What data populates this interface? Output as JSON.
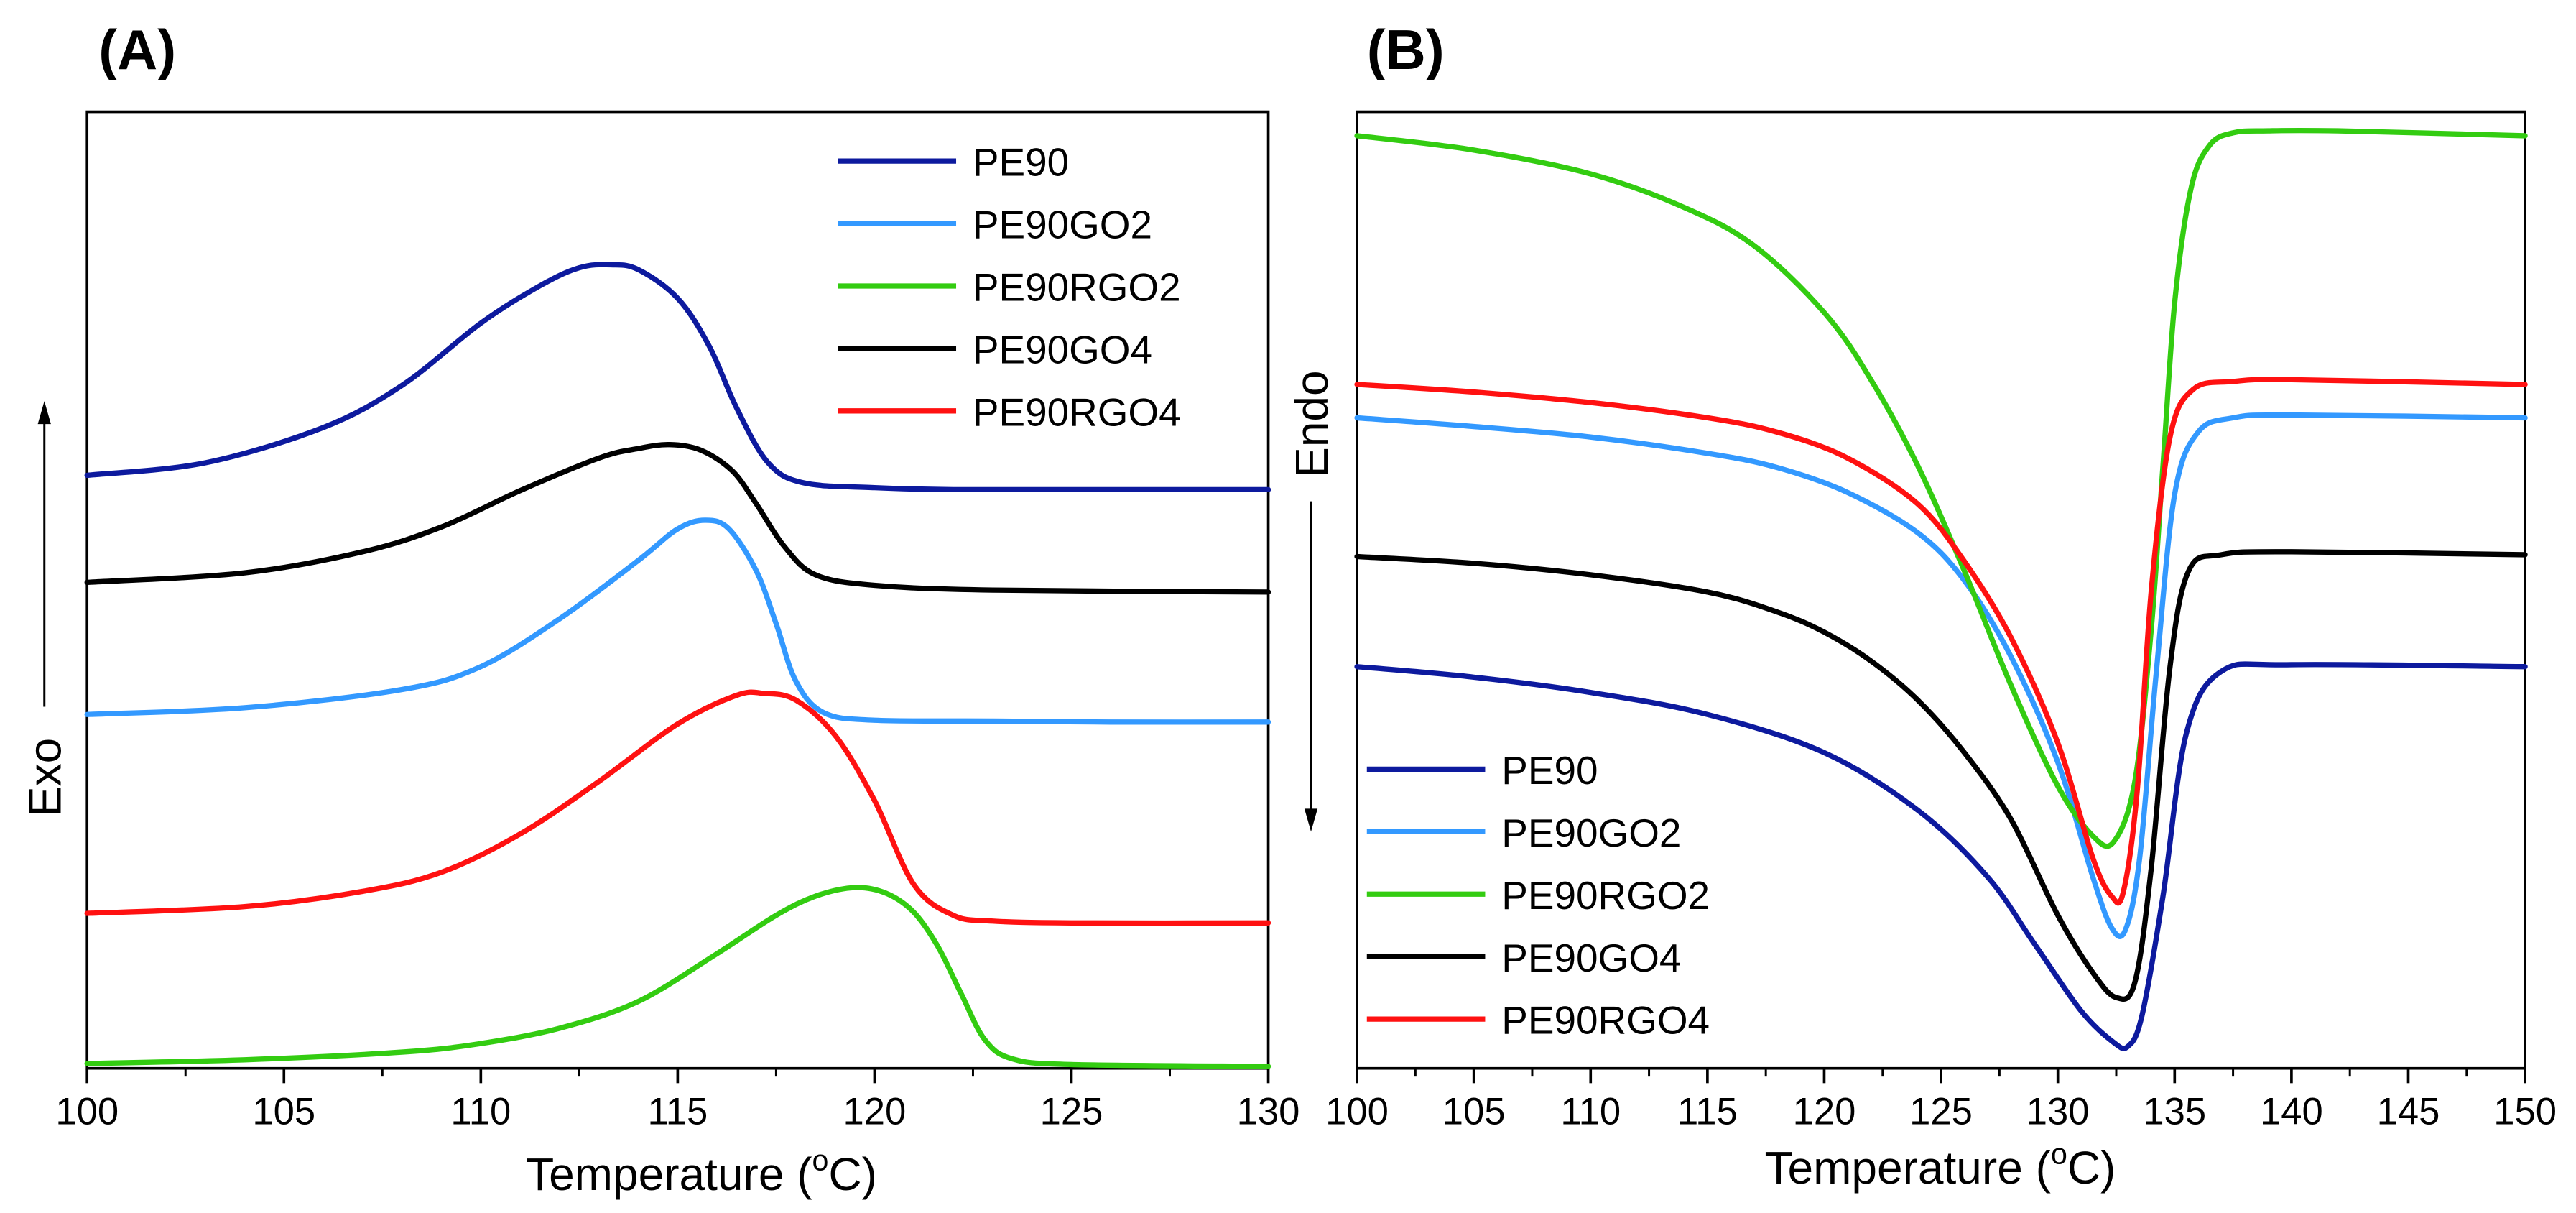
{
  "chart_data": [
    {
      "type": "line",
      "panel_label": "(A)",
      "xlabel_prefix": "Temperature (",
      "xlabel_sup": "o",
      "xlabel_suffix": "C)",
      "xlim": [
        100,
        130
      ],
      "xticks": [
        "100",
        "105",
        "110",
        "115",
        "120",
        "125",
        "130"
      ],
      "ylabel_text": "Exo",
      "yticks": [],
      "legend_position": "top-right",
      "series": [
        {
          "name": "PE90",
          "color": "#0d1a9e",
          "x": [
            100,
            103,
            106,
            108,
            110,
            111.5,
            112.5,
            113.3,
            114,
            115,
            115.8,
            116.5,
            117.3,
            118.2,
            120,
            122,
            125,
            130
          ],
          "y": [
            0.62,
            0.633,
            0.67,
            0.714,
            0.779,
            0.818,
            0.837,
            0.84,
            0.835,
            0.805,
            0.755,
            0.69,
            0.633,
            0.612,
            0.607,
            0.605,
            0.605,
            0.605
          ]
        },
        {
          "name": "PE90GO2",
          "color": "#3399ff",
          "x": [
            100,
            104,
            108,
            110,
            112,
            114,
            115,
            115.7,
            116.3,
            117,
            117.5,
            118,
            118.7,
            120,
            123,
            126,
            130
          ],
          "y": [
            0.37,
            0.377,
            0.396,
            0.42,
            0.47,
            0.531,
            0.564,
            0.573,
            0.564,
            0.52,
            0.465,
            0.405,
            0.372,
            0.364,
            0.363,
            0.362,
            0.362
          ]
        },
        {
          "name": "PE90RGO2",
          "color": "#33cc11",
          "x": [
            100,
            104,
            108,
            110,
            112,
            114,
            116,
            117.5,
            118.5,
            119.5,
            120.3,
            121,
            121.6,
            122.2,
            122.8,
            123.5,
            125,
            130
          ],
          "y": [
            0.005,
            0.009,
            0.017,
            0.026,
            0.042,
            0.07,
            0.12,
            0.16,
            0.18,
            0.189,
            0.183,
            0.163,
            0.128,
            0.078,
            0.03,
            0.01,
            0.004,
            0.002
          ]
        },
        {
          "name": "PE90GO4",
          "color": "#000000",
          "x": [
            100,
            104,
            107,
            109,
            111,
            113,
            114,
            114.8,
            115.6,
            116.4,
            117,
            117.7,
            118.5,
            120,
            123,
            130
          ],
          "y": [
            0.508,
            0.518,
            0.54,
            0.566,
            0.604,
            0.638,
            0.648,
            0.652,
            0.646,
            0.624,
            0.59,
            0.546,
            0.516,
            0.505,
            0.5,
            0.498
          ]
        },
        {
          "name": "PE90RGO4",
          "color": "#ff1111",
          "x": [
            100,
            104,
            107,
            109,
            111,
            113,
            115,
            116.5,
            117.2,
            118,
            119,
            120,
            121,
            122,
            123,
            125,
            130
          ],
          "y": [
            0.162,
            0.169,
            0.185,
            0.205,
            0.245,
            0.3,
            0.36,
            0.39,
            0.392,
            0.385,
            0.348,
            0.28,
            0.192,
            0.16,
            0.154,
            0.152,
            0.152
          ]
        }
      ]
    },
    {
      "type": "line",
      "panel_label": "(B)",
      "xlabel_prefix": "Temperature (",
      "xlabel_sup": "o",
      "xlabel_suffix": "C)",
      "xlim": [
        100,
        150
      ],
      "xticks": [
        "100",
        "105",
        "110",
        "115",
        "120",
        "125",
        "130",
        "135",
        "140",
        "145",
        "150"
      ],
      "ylabel_text": "Endo",
      "yticks": [],
      "legend_position": "bottom-left",
      "series": [
        {
          "name": "PE90",
          "color": "#0d1a9e",
          "x": [
            100,
            105,
            110,
            115,
            120,
            124,
            127,
            129,
            131,
            132.4,
            133,
            133.6,
            134.5,
            135.5,
            137,
            140,
            150
          ],
          "y": [
            0.42,
            0.409,
            0.393,
            0.37,
            0.33,
            0.27,
            0.2,
            0.13,
            0.06,
            0.027,
            0.023,
            0.055,
            0.18,
            0.35,
            0.415,
            0.422,
            0.42
          ]
        },
        {
          "name": "PE90GO2",
          "color": "#3399ff",
          "x": [
            100,
            105,
            110,
            115,
            118,
            121,
            124,
            126,
            128,
            130,
            131.5,
            132.3,
            132.9,
            133.5,
            134.2,
            135,
            136,
            137.5,
            140,
            150
          ],
          "y": [
            0.68,
            0.671,
            0.66,
            0.643,
            0.628,
            0.602,
            0.56,
            0.51,
            0.43,
            0.32,
            0.2,
            0.147,
            0.145,
            0.22,
            0.41,
            0.6,
            0.665,
            0.68,
            0.683,
            0.68
          ]
        },
        {
          "name": "PE90RGO2",
          "color": "#33cc11",
          "x": [
            100,
            105,
            110,
            114,
            117,
            120,
            122,
            124,
            126,
            128,
            130,
            131.5,
            132.4,
            133.3,
            134,
            134.5,
            135,
            135.7,
            136.5,
            137.5,
            139,
            142,
            150
          ],
          "y": [
            0.975,
            0.96,
            0.935,
            0.9,
            0.86,
            0.79,
            0.72,
            0.63,
            0.52,
            0.4,
            0.295,
            0.243,
            0.237,
            0.3,
            0.46,
            0.63,
            0.8,
            0.92,
            0.965,
            0.978,
            0.98,
            0.98,
            0.975
          ]
        },
        {
          "name": "PE90GO4",
          "color": "#000000",
          "x": [
            100,
            105,
            110,
            115,
            118,
            120,
            122,
            124,
            126,
            128,
            130,
            131.5,
            132.5,
            133.3,
            134,
            134.8,
            135.6,
            137,
            140,
            150
          ],
          "y": [
            0.535,
            0.528,
            0.516,
            0.498,
            0.477,
            0.456,
            0.426,
            0.385,
            0.33,
            0.26,
            0.16,
            0.1,
            0.074,
            0.09,
            0.21,
            0.42,
            0.52,
            0.537,
            0.54,
            0.537
          ]
        },
        {
          "name": "PE90RGO4",
          "color": "#ff1111",
          "x": [
            100,
            105,
            110,
            115,
            118,
            121,
            124,
            126,
            128,
            130,
            131.5,
            132.3,
            132.8,
            133.4,
            134,
            134.8,
            135.8,
            137.5,
            140,
            150
          ],
          "y": [
            0.715,
            0.707,
            0.696,
            0.68,
            0.665,
            0.638,
            0.59,
            0.53,
            0.45,
            0.34,
            0.22,
            0.18,
            0.184,
            0.29,
            0.5,
            0.66,
            0.71,
            0.718,
            0.72,
            0.715
          ]
        }
      ]
    }
  ]
}
